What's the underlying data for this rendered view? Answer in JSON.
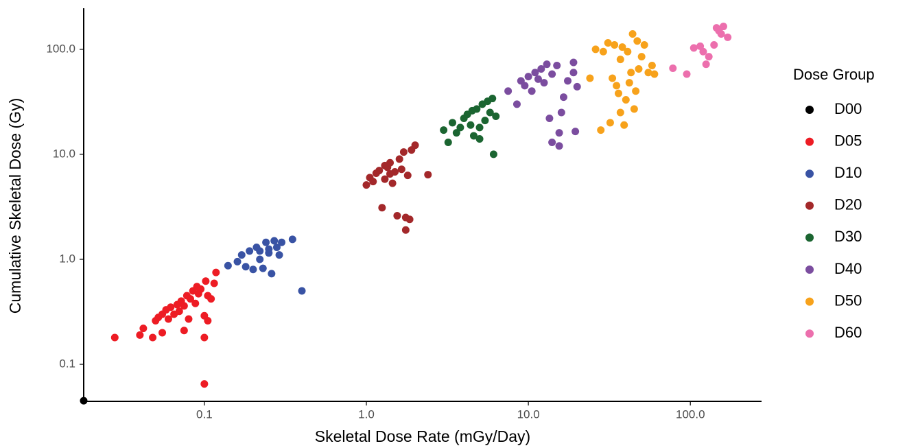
{
  "chart_data": {
    "type": "scatter",
    "x_label": "Skeletal Dose Rate (mGy/Day)",
    "y_label": "Cumulative Skeletal Dose (Gy)",
    "legend_title": "Dose Group",
    "legend_position": "right",
    "x_log": true,
    "y_log": true,
    "grid": false,
    "xlim": [
      0.018,
      275
    ],
    "ylim": [
      0.0444,
      246
    ],
    "xticks": [
      0.1,
      {
        "value": 1,
        "label": "1.0"
      },
      {
        "value": 10,
        "label": "10.0"
      },
      {
        "value": 100,
        "label": "100.0"
      }
    ],
    "yticks": [
      0.1,
      {
        "value": 1,
        "label": "1.0"
      },
      {
        "value": 10,
        "label": "10.0"
      },
      {
        "value": 100,
        "label": "100.0"
      }
    ],
    "series": [
      {
        "name": "D00",
        "color": "#000000",
        "x": [
          0.018
        ],
        "y": [
          0.045
        ]
      },
      {
        "name": "D05",
        "color": "#ed1c24",
        "x": [
          0.028,
          0.04,
          0.042,
          0.048,
          0.05,
          0.052,
          0.055,
          0.055,
          0.058,
          0.06,
          0.062,
          0.065,
          0.068,
          0.07,
          0.072,
          0.075,
          0.075,
          0.078,
          0.08,
          0.082,
          0.085,
          0.088,
          0.09,
          0.092,
          0.095,
          0.1,
          0.1,
          0.1,
          0.102,
          0.105,
          0.105,
          0.11,
          0.115,
          0.118
        ],
        "y": [
          0.18,
          0.19,
          0.22,
          0.18,
          0.26,
          0.28,
          0.2,
          0.3,
          0.33,
          0.27,
          0.35,
          0.3,
          0.37,
          0.32,
          0.4,
          0.21,
          0.36,
          0.45,
          0.27,
          0.42,
          0.5,
          0.38,
          0.55,
          0.47,
          0.52,
          0.18,
          0.29,
          0.065,
          0.62,
          0.26,
          0.45,
          0.42,
          0.59,
          0.75
        ]
      },
      {
        "name": "D10",
        "color": "#3953a4",
        "x": [
          0.14,
          0.16,
          0.17,
          0.18,
          0.19,
          0.2,
          0.21,
          0.22,
          0.23,
          0.24,
          0.25,
          0.26,
          0.27,
          0.28,
          0.29,
          0.3,
          0.35,
          0.4,
          0.22,
          0.25
        ],
        "y": [
          0.87,
          0.95,
          1.1,
          0.85,
          1.2,
          0.8,
          1.3,
          1.0,
          0.82,
          1.45,
          1.15,
          0.73,
          1.5,
          1.3,
          1.1,
          1.45,
          1.55,
          0.5,
          1.2,
          1.25
        ]
      },
      {
        "name": "D20",
        "color": "#a3282a",
        "x": [
          1.0,
          1.05,
          1.1,
          1.15,
          1.2,
          1.25,
          1.3,
          1.35,
          1.4,
          1.45,
          1.5,
          1.55,
          1.6,
          1.65,
          1.7,
          1.75,
          1.75,
          1.8,
          1.85,
          1.9,
          2.0,
          2.4,
          1.4,
          1.3
        ],
        "y": [
          5.1,
          6.0,
          5.5,
          6.6,
          7.0,
          3.1,
          5.8,
          7.5,
          8.3,
          5.3,
          6.8,
          2.6,
          9.0,
          7.2,
          10.5,
          1.9,
          2.5,
          6.3,
          2.4,
          11.0,
          12.2,
          6.4,
          6.5,
          7.8
        ]
      },
      {
        "name": "D30",
        "color": "#1b6531",
        "x": [
          3.0,
          3.2,
          3.4,
          3.6,
          3.8,
          4.0,
          4.2,
          4.4,
          4.6,
          4.8,
          5.0,
          5.2,
          5.4,
          5.6,
          5.8,
          6.0,
          6.1,
          6.3,
          4.5,
          5.0
        ],
        "y": [
          17,
          13,
          20,
          16,
          18,
          22,
          24,
          19,
          15,
          27,
          14,
          30,
          21,
          32,
          25,
          34,
          10,
          23,
          26,
          18
        ]
      },
      {
        "name": "D40",
        "color": "#7b4d9f",
        "x": [
          7.5,
          8.5,
          9,
          9.5,
          10,
          10.5,
          11,
          11.5,
          12,
          12.5,
          13,
          13.5,
          14,
          14,
          15,
          15.5,
          15.5,
          16,
          16.5,
          17.5,
          19,
          19,
          19.5,
          20
        ],
        "y": [
          40,
          30,
          50,
          45,
          55,
          40,
          60,
          52,
          65,
          48,
          72,
          22,
          58,
          13,
          70,
          12,
          16,
          25,
          35,
          50,
          75,
          60,
          16.5,
          44
        ]
      },
      {
        "name": "D50",
        "color": "#f7a21b",
        "x": [
          24,
          26,
          28,
          29,
          31,
          32,
          33,
          34,
          35,
          36,
          37,
          37,
          38,
          39,
          40,
          41,
          42,
          43,
          44,
          45,
          46,
          47,
          48,
          50,
          52,
          55,
          58,
          60
        ],
        "y": [
          53,
          100,
          17,
          95,
          115,
          20,
          53,
          110,
          45,
          38,
          80,
          25,
          105,
          19,
          33,
          95,
          48,
          60,
          140,
          27,
          40,
          120,
          65,
          85,
          110,
          60,
          70,
          58
        ]
      },
      {
        "name": "D60",
        "color": "#ec6fad",
        "x": [
          78,
          95,
          105,
          115,
          120,
          125,
          130,
          140,
          145,
          150,
          155,
          160,
          170
        ],
        "y": [
          66,
          58,
          103,
          107,
          95,
          72,
          85,
          110,
          160,
          150,
          140,
          165,
          130
        ]
      }
    ]
  }
}
